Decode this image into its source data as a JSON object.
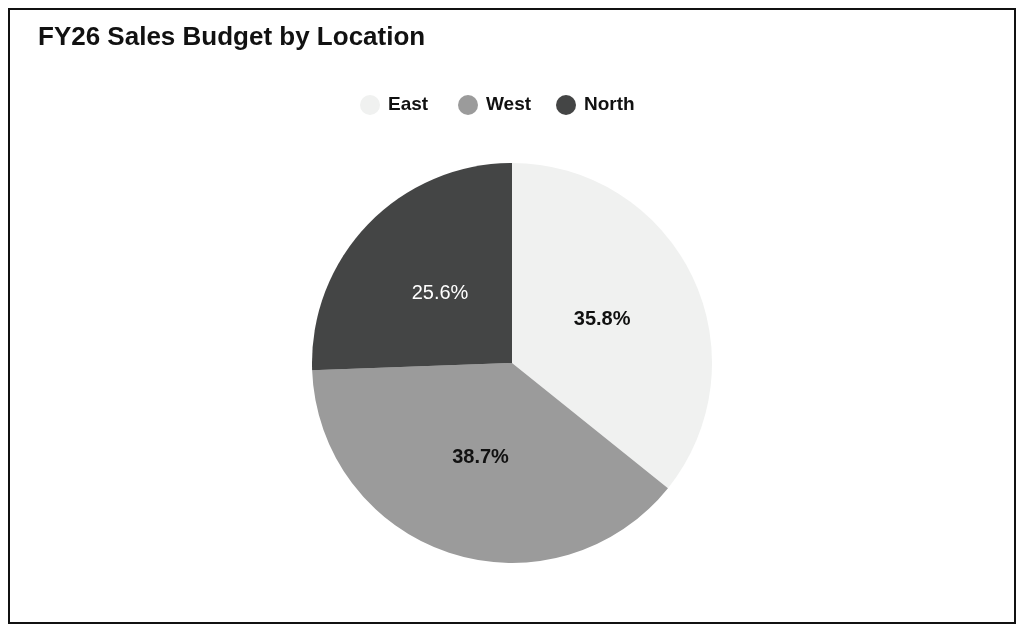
{
  "chart_data": {
    "type": "pie",
    "title": "FY26 Sales Budget by Location",
    "categories": [
      "East",
      "West",
      "North"
    ],
    "values": [
      35.8,
      38.7,
      25.6
    ],
    "colors": [
      "#f0f1f0",
      "#9b9b9b",
      "#444545"
    ],
    "value_labels": [
      "35.8%",
      "38.7%",
      "25.6%"
    ],
    "legend": "top"
  }
}
